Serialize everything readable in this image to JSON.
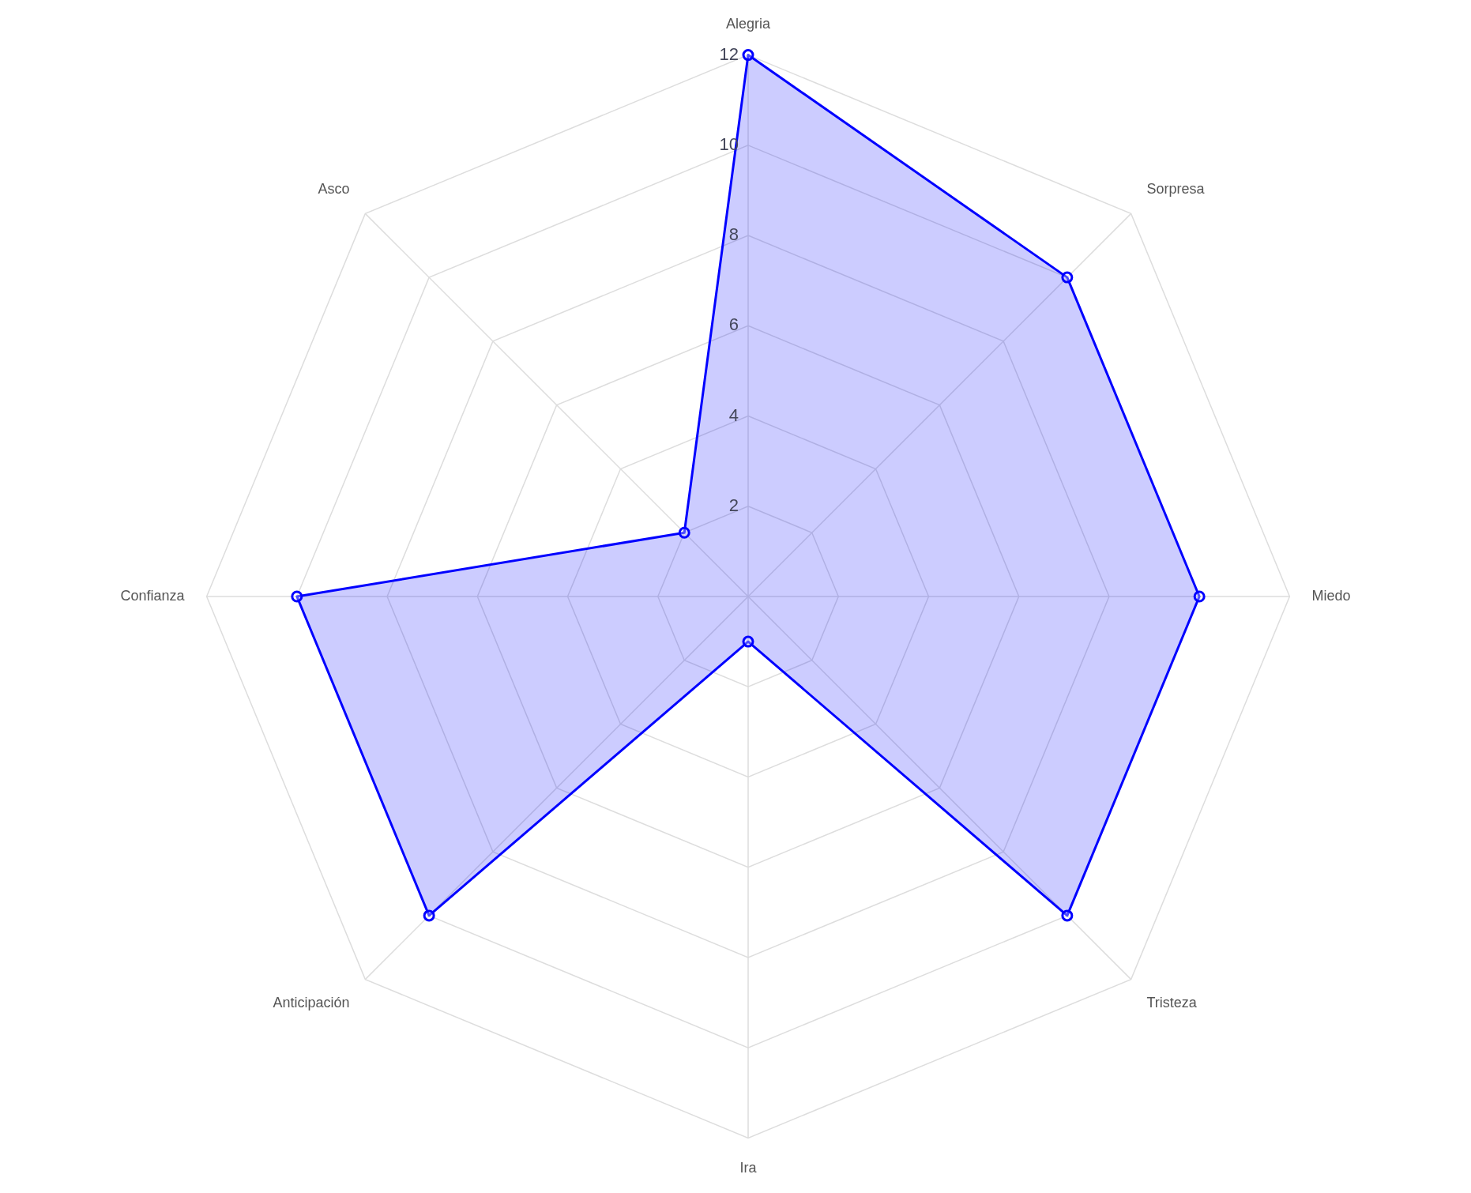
{
  "chart_data": {
    "type": "radar",
    "categories": [
      "Alegria",
      "Sorpresa",
      "Miedo",
      "Tristeza",
      "Ira",
      "Anticipación",
      "Confianza",
      "Asco"
    ],
    "series": [
      {
        "color": "#0000ff",
        "values": [
          12,
          10,
          10,
          10,
          1,
          10,
          10,
          2
        ]
      }
    ],
    "ylim": [
      0,
      12
    ],
    "yticks": [
      2,
      4,
      6,
      8,
      10,
      12
    ],
    "grid": true,
    "legend": false,
    "marker": "circle",
    "line_style": "solid"
  }
}
